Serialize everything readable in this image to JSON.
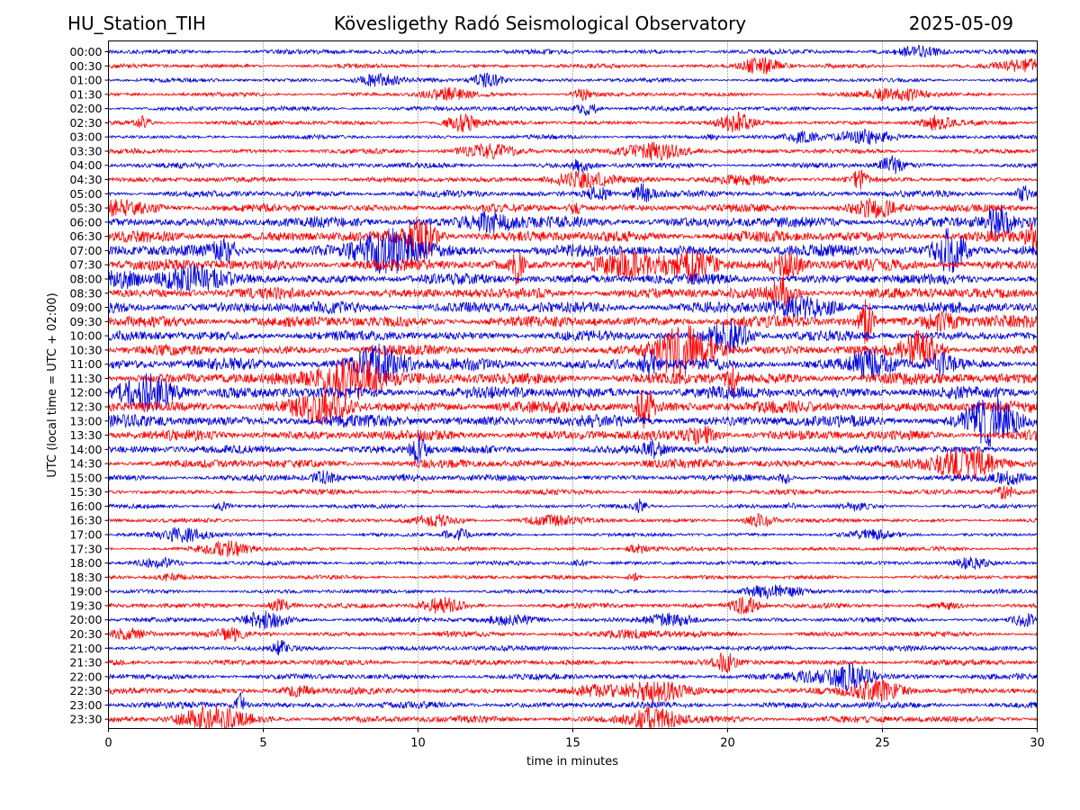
{
  "header": {
    "station": "HU_Station_TIH",
    "title": "Kövesligethy Radó Seismological Observatory",
    "date": "2025-05-09"
  },
  "chart_data": {
    "type": "line",
    "title": "Kövesligethy Radó Seismological Observatory",
    "xlabel": "time in minutes",
    "ylabel": "UTC (local time = UTC + 02:00)",
    "xlim": [
      0,
      30
    ],
    "xticks": [
      0,
      5,
      10,
      15,
      20,
      25,
      30
    ],
    "grid": "vertical dotted lines at x ticks",
    "series_colors": [
      "#0000dd",
      "#ff0000"
    ],
    "rows": [
      "00:00",
      "00:30",
      "01:00",
      "01:30",
      "02:00",
      "02:30",
      "03:00",
      "03:30",
      "04:00",
      "04:30",
      "05:00",
      "05:30",
      "06:00",
      "06:30",
      "07:00",
      "07:30",
      "08:00",
      "08:30",
      "09:00",
      "09:30",
      "10:00",
      "10:30",
      "11:00",
      "11:30",
      "12:00",
      "12:30",
      "13:00",
      "13:30",
      "14:00",
      "14:30",
      "15:00",
      "15:30",
      "16:00",
      "16:30",
      "17:00",
      "17:30",
      "18:00",
      "18:30",
      "19:00",
      "19:30",
      "20:00",
      "20:30",
      "21:00",
      "21:30",
      "22:00",
      "22:30",
      "23:00",
      "23:30"
    ],
    "relative_amplitude": [
      0.4,
      0.36,
      0.34,
      0.34,
      0.4,
      0.4,
      0.34,
      0.4,
      0.44,
      0.44,
      0.54,
      0.64,
      0.9,
      0.92,
      1.0,
      0.96,
      0.88,
      0.92,
      0.96,
      0.96,
      0.82,
      0.82,
      0.98,
      1.0,
      1.0,
      1.0,
      0.98,
      0.86,
      0.66,
      0.72,
      0.52,
      0.44,
      0.34,
      0.34,
      0.32,
      0.34,
      0.34,
      0.34,
      0.34,
      0.4,
      0.4,
      0.44,
      0.44,
      0.48,
      0.48,
      0.54,
      0.54,
      0.58
    ]
  }
}
